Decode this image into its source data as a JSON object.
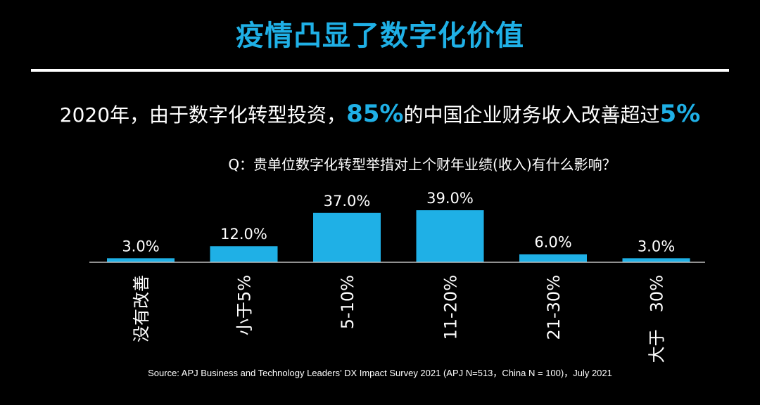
{
  "title": "疫情凸显了数字化价值",
  "headline": {
    "part1": "2020年，由于数字化转型投资，",
    "hl1": "85%",
    "part2": "的中国企业财务收入改善超过",
    "hl2": "5%"
  },
  "question": "Q：贵单位数字化转型举措对上个财年业绩(收入)有什么影响？",
  "source": "Source: APJ Business and Technology Leaders’ DX Impact Survey 2021 (APJ N=513，China N = 100)，July 2021",
  "colors": {
    "accent": "#1fb0e6",
    "bar": "#1fb0e6",
    "text": "#ffffff",
    "background": "#000000"
  },
  "chart_data": {
    "type": "bar",
    "categories": [
      "没有改善",
      "小于5%",
      "5-10%",
      "11-20%",
      "21-30%",
      "大于　30%"
    ],
    "values": [
      3.0,
      12.0,
      37.0,
      39.0,
      6.0,
      3.0
    ],
    "value_labels": [
      "3.0%",
      "12.0%",
      "37.0%",
      "39.0%",
      "6.0%",
      "3.0%"
    ],
    "unit": "%",
    "ylim": [
      0,
      39
    ],
    "grid": false,
    "legend": "none"
  }
}
